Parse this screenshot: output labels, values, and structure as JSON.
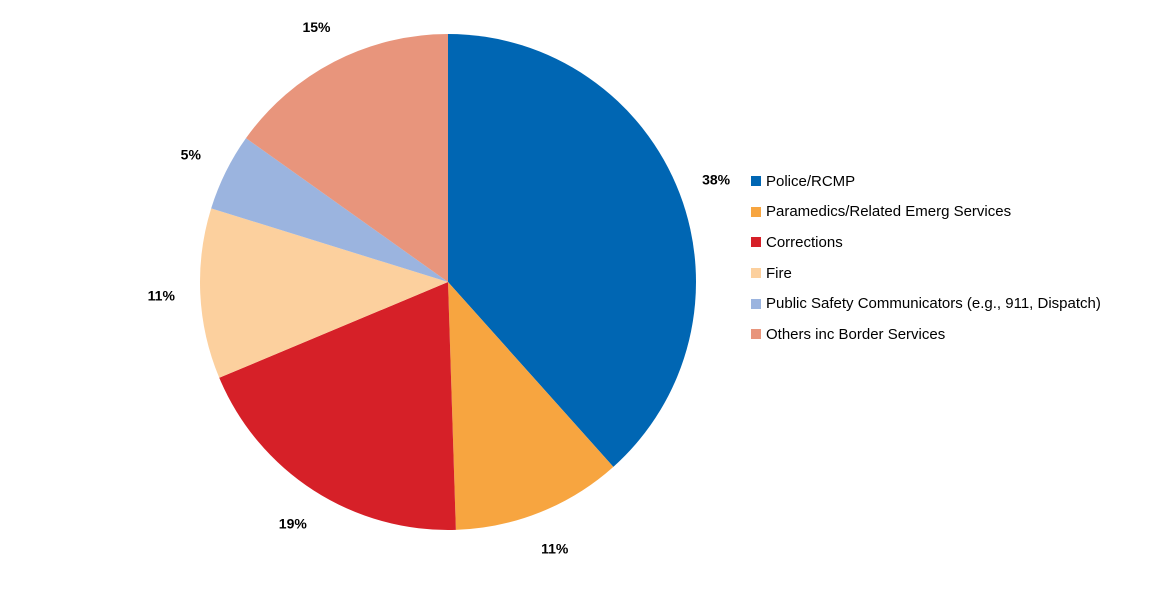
{
  "chart_data": {
    "type": "pie",
    "title": "",
    "categories": [
      "Police/RCMP",
      "Paramedics/Related Emerg Services",
      "Corrections",
      "Fire",
      "Public Safety Communicators (e.g., 911, Dispatch)",
      "Others inc Border Services"
    ],
    "values": [
      38,
      11,
      19,
      11,
      5,
      15
    ],
    "data_labels": [
      "38%",
      "11%",
      "19%",
      "11%",
      "5%",
      "15%"
    ],
    "colors": [
      "#0066b3",
      "#f7a540",
      "#d62028",
      "#fcd09e",
      "#9bb4df",
      "#e8957c"
    ],
    "legend_position": "right"
  }
}
